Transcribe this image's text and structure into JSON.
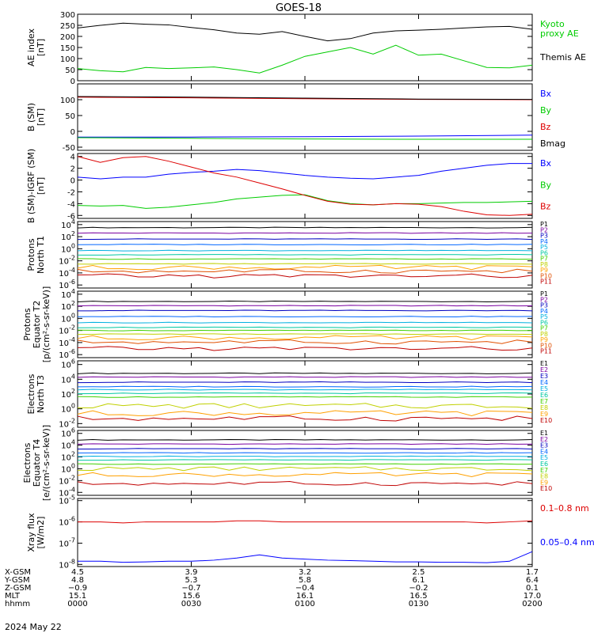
{
  "title": "GOES-18",
  "date_label": "2024 May 22",
  "colors": {
    "black": "#000000",
    "green": "#00dd00",
    "blue": "#0000ff",
    "red": "#dd0000",
    "ae": "#000000",
    "proxy": "#00cc00"
  },
  "chart_data": [
    {
      "type": "line",
      "id": "ae",
      "ylabel": "AE index\n[nT]",
      "ylim": [
        0,
        300
      ],
      "yticks": [
        "0",
        "50",
        "100",
        "150",
        "200",
        "250",
        "300"
      ],
      "yscale": "linear",
      "legend": [
        "Kyoto\nproxy AE",
        "Themis AE"
      ],
      "legend_colors": [
        "#00cc00",
        "#000000"
      ],
      "x": [
        0,
        0.05,
        0.1,
        0.15,
        0.2,
        0.25,
        0.3,
        0.35,
        0.4,
        0.45,
        0.5,
        0.55,
        0.6,
        0.65,
        0.7,
        0.75,
        0.8,
        0.85,
        0.9,
        0.95,
        1.0
      ],
      "series": [
        {
          "color": "#000000",
          "values": [
            238,
            250,
            260,
            255,
            252,
            240,
            230,
            215,
            210,
            222,
            200,
            180,
            190,
            215,
            225,
            228,
            232,
            238,
            243,
            245,
            232
          ]
        },
        {
          "color": "#00cc00",
          "values": [
            55,
            45,
            40,
            60,
            55,
            58,
            62,
            50,
            35,
            70,
            110,
            130,
            150,
            120,
            160,
            115,
            120,
            90,
            60,
            58,
            70
          ]
        }
      ]
    },
    {
      "type": "line",
      "id": "bsm",
      "ylabel": "B (SM)\n[nT]",
      "ylim": [
        -60,
        150
      ],
      "yticks": [
        "-50",
        "0",
        "50",
        "100"
      ],
      "ytick_values": [
        -50,
        0,
        50,
        100
      ],
      "yscale": "linear",
      "legend": [
        "Bx",
        "By",
        "Bz",
        "Bmag"
      ],
      "legend_colors": [
        "#0000ff",
        "#00cc00",
        "#dd0000",
        "#000000"
      ],
      "x": [
        0,
        0.25,
        0.5,
        0.75,
        1.0
      ],
      "series": [
        {
          "color": "#0000ff",
          "values": [
            -18,
            -18,
            -17,
            -15,
            -12
          ]
        },
        {
          "color": "#00cc00",
          "values": [
            -20,
            -22,
            -24,
            -25,
            -25
          ]
        },
        {
          "color": "#dd0000",
          "values": [
            108,
            106,
            103,
            101,
            100
          ]
        },
        {
          "color": "#000000",
          "values": [
            110,
            108,
            105,
            102,
            101
          ]
        }
      ]
    },
    {
      "type": "line",
      "id": "bdiff",
      "ylabel": "B (SM)-IGRF (SM)\n[nT]",
      "ylim": [
        -6.5,
        4.5
      ],
      "yticks": [
        "-6",
        "-4",
        "-2",
        "0",
        "2",
        "4"
      ],
      "ytick_values": [
        -6,
        -4,
        -2,
        0,
        2,
        4
      ],
      "yscale": "linear",
      "legend": [
        "Bx",
        "By",
        "Bz"
      ],
      "legend_colors": [
        "#0000ff",
        "#00cc00",
        "#dd0000"
      ],
      "x": [
        0,
        0.05,
        0.1,
        0.15,
        0.2,
        0.25,
        0.3,
        0.35,
        0.4,
        0.45,
        0.5,
        0.55,
        0.6,
        0.65,
        0.7,
        0.75,
        0.8,
        0.85,
        0.9,
        0.95,
        1.0
      ],
      "series": [
        {
          "color": "#0000ff",
          "values": [
            0.5,
            0.2,
            0.5,
            0.5,
            1.0,
            1.3,
            1.5,
            1.8,
            1.6,
            1.2,
            0.8,
            0.5,
            0.3,
            0.2,
            0.5,
            0.8,
            1.5,
            2.0,
            2.5,
            2.8,
            2.8
          ]
        },
        {
          "color": "#00cc00",
          "values": [
            -4.3,
            -4.4,
            -4.3,
            -4.8,
            -4.6,
            -4.2,
            -3.8,
            -3.2,
            -2.9,
            -2.6,
            -2.5,
            -3.5,
            -4.0,
            -4.2,
            -4.0,
            -4.0,
            -3.9,
            -3.8,
            -3.8,
            -3.7,
            -3.6
          ]
        },
        {
          "color": "#dd0000",
          "values": [
            4.0,
            3.0,
            3.8,
            4.0,
            3.2,
            2.2,
            1.2,
            0.5,
            -0.5,
            -1.5,
            -2.6,
            -3.6,
            -4.1,
            -4.2,
            -4.0,
            -4.1,
            -4.5,
            -5.3,
            -5.9,
            -6.0,
            -5.8
          ]
        }
      ]
    },
    {
      "type": "line",
      "id": "p_north",
      "ylabel": "Protons\nNorth T1",
      "ylim_exp": [
        -6.5,
        4.5
      ],
      "yticks": [
        "10^4",
        "10^2",
        "10^0",
        "10^-2",
        "10^-4",
        "10^-6"
      ],
      "ytick_exps": [
        4,
        2,
        0,
        -2,
        -4,
        -6
      ],
      "yscale": "log",
      "legend": [
        "P1",
        "P2",
        "P3",
        "P4",
        "P5",
        "P6",
        "P7",
        "P8",
        "P9",
        "P10",
        "P11"
      ],
      "legend_colors": [
        "#000000",
        "#7a00a0",
        "#0000c0",
        "#0066ff",
        "#00b0e0",
        "#00c8a0",
        "#40d000",
        "#c0d000",
        "#ffa000",
        "#e05000",
        "#c00000"
      ],
      "levels_exp": [
        3.5,
        2.6,
        1.6,
        0.7,
        -0.3,
        -1.0,
        -1.7,
        -2.5,
        -3.1,
        -3.7,
        -4.5
      ]
    },
    {
      "type": "line",
      "id": "p_equator",
      "ylabel": "Protons\nEquator T2\n[p/(cm²-s-sr-keV)]",
      "ylim_exp": [
        -6.5,
        4.5
      ],
      "yticks": [
        "10^4",
        "10^2",
        "10^0",
        "10^-2",
        "10^-4",
        "10^-6"
      ],
      "ytick_exps": [
        4,
        2,
        0,
        -2,
        -4,
        -6
      ],
      "yscale": "log",
      "legend": [
        "P1",
        "P2",
        "P3",
        "P4",
        "P5",
        "P6",
        "P7",
        "P8",
        "P9",
        "P10",
        "P11"
      ],
      "legend_colors": [
        "#000000",
        "#7a00a0",
        "#0000c0",
        "#0066ff",
        "#00b0e0",
        "#00c8a0",
        "#40d000",
        "#c0d000",
        "#ffa000",
        "#e05000",
        "#c00000"
      ],
      "levels_exp": [
        2.8,
        2.1,
        1.3,
        0.3,
        -0.7,
        -1.5,
        -2.0,
        -2.6,
        -3.2,
        -3.9,
        -5.0
      ]
    },
    {
      "type": "line",
      "id": "e_north",
      "ylabel": "Electrons\nNorth T3",
      "ylim_exp": [
        -2.5,
        6.5
      ],
      "yticks": [
        "10^6",
        "10^4",
        "10^2",
        "10^0",
        "10^-2"
      ],
      "ytick_exps": [
        6,
        4,
        2,
        0,
        -2
      ],
      "yscale": "log",
      "legend": [
        "E1",
        "E2",
        "E3",
        "E4",
        "E5",
        "E6",
        "E7",
        "E8",
        "E9",
        "E10"
      ],
      "legend_colors": [
        "#000000",
        "#7a00a0",
        "#0000c0",
        "#0066ff",
        "#00b0e0",
        "#00c8a0",
        "#40d000",
        "#c0d000",
        "#ffa000",
        "#c00000"
      ],
      "levels_exp": [
        4.8,
        4.3,
        3.6,
        3.0,
        2.6,
        2.1,
        1.6,
        0.4,
        -0.6,
        -1.3
      ]
    },
    {
      "type": "line",
      "id": "e_equator",
      "ylabel": "Electrons\nEquator T4\n[e/(cm²-s-sr-keV)]",
      "ylim_exp": [
        -4.5,
        6.5
      ],
      "yticks": [
        "10^6",
        "10^4",
        "10^2",
        "10^0",
        "10^-2",
        "10^-4"
      ],
      "ytick_exps": [
        6,
        4,
        2,
        0,
        -2,
        -4
      ],
      "yscale": "log",
      "legend": [
        "E1",
        "E2",
        "E3",
        "E4",
        "E5",
        "E6",
        "E7",
        "E8",
        "E9",
        "E10"
      ],
      "legend_colors": [
        "#000000",
        "#7a00a0",
        "#0000c0",
        "#0066ff",
        "#00b0e0",
        "#00c8a0",
        "#40d000",
        "#c0d000",
        "#ffa000",
        "#c00000"
      ],
      "levels_exp": [
        4.9,
        4.2,
        3.4,
        2.7,
        2.1,
        1.5,
        0.8,
        0.0,
        -1.0,
        -2.5
      ]
    },
    {
      "type": "line",
      "id": "xray",
      "ylabel": "Xray flux\n[W/m2]",
      "ylim_exp": [
        -8.1,
        -4.9
      ],
      "yticks": [
        "10^-5",
        "10^-6",
        "10^-7",
        "10^-8"
      ],
      "ytick_exps": [
        -5,
        -6,
        -7,
        -8
      ],
      "yscale": "log",
      "legend": [
        "0.1–0.8 nm",
        "0.05–0.4 nm"
      ],
      "legend_colors": [
        "#dd0000",
        "#0000ff"
      ],
      "x": [
        0,
        0.05,
        0.1,
        0.15,
        0.2,
        0.25,
        0.3,
        0.35,
        0.4,
        0.45,
        0.5,
        0.55,
        0.6,
        0.65,
        0.7,
        0.75,
        0.8,
        0.85,
        0.9,
        0.95,
        1.0
      ],
      "series": [
        {
          "color": "#dd0000",
          "values": [
            -6.0,
            -6.0,
            -6.05,
            -6.0,
            -6.0,
            -6.0,
            -6.0,
            -5.95,
            -5.95,
            -6.0,
            -6.0,
            -6.0,
            -6.0,
            -6.0,
            -6.0,
            -6.0,
            -6.0,
            -6.0,
            -6.05,
            -6.0,
            -5.95
          ]
        },
        {
          "color": "#0000ff",
          "values": [
            -7.85,
            -7.85,
            -7.9,
            -7.88,
            -7.85,
            -7.85,
            -7.8,
            -7.7,
            -7.55,
            -7.7,
            -7.75,
            -7.8,
            -7.82,
            -7.85,
            -7.88,
            -7.88,
            -7.9,
            -7.9,
            -7.92,
            -7.85,
            -7.4
          ]
        }
      ]
    }
  ],
  "footer": {
    "row_labels": [
      "X-GSM",
      "Y-GSM",
      "Z-GSM",
      "MLT",
      "hhmm"
    ],
    "columns": [
      {
        "frac": 0.0,
        "values": [
          "4.5",
          "4.8",
          "−0.9",
          "15.1",
          "0000"
        ]
      },
      {
        "frac": 0.25,
        "values": [
          "3.9",
          "5.3",
          "−0.7",
          "15.6",
          "0030"
        ]
      },
      {
        "frac": 0.5,
        "values": [
          "3.2",
          "5.8",
          "−0.4",
          "16.1",
          "0100"
        ]
      },
      {
        "frac": 0.75,
        "values": [
          "2.5",
          "6.1",
          "−0.2",
          "16.5",
          "0130"
        ]
      },
      {
        "frac": 1.0,
        "values": [
          "1.7",
          "6.4",
          "0.1",
          "17.0",
          "0200"
        ]
      }
    ]
  }
}
